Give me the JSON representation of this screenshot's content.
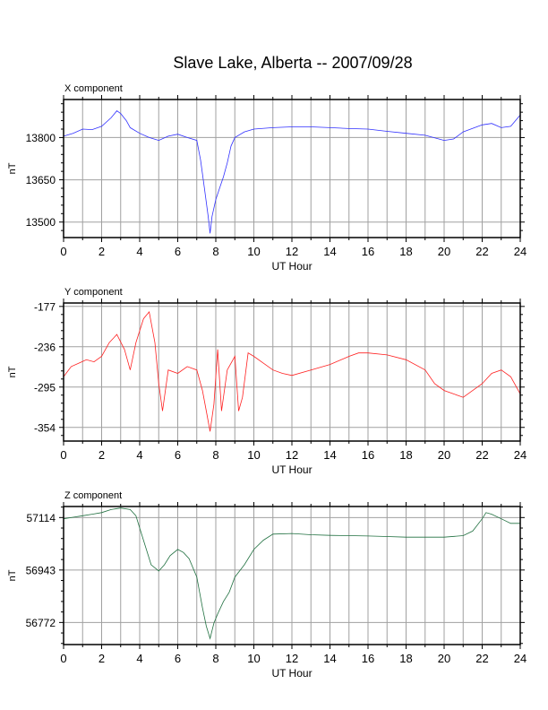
{
  "title": "Slave Lake, Alberta -- 2007/09/28",
  "colors": {
    "x": "#3030ff",
    "y": "#ff2020",
    "z": "#207040",
    "grid": "#a0a0a0",
    "axis": "#000000"
  },
  "chart_data": [
    {
      "type": "line",
      "label": "X component",
      "xlabel": "UT Hour",
      "ylabel": "nT",
      "xlim": [
        0,
        24
      ],
      "ylim": [
        13445,
        13935
      ],
      "x_ticks": [
        "0",
        "2",
        "4",
        "6",
        "8",
        "10",
        "12",
        "14",
        "16",
        "18",
        "20",
        "22",
        "24"
      ],
      "y_ticks": [
        13800,
        13650,
        13500
      ],
      "y_tick_labels": [
        "13800",
        "13650",
        "13500"
      ],
      "color": "#3030ff",
      "grid": true,
      "x": [
        0,
        0.5,
        1,
        1.5,
        2,
        2.5,
        2.8,
        3,
        3.3,
        3.5,
        4,
        4.5,
        5,
        5.5,
        6,
        6.5,
        7,
        7.2,
        7.4,
        7.6,
        7.7,
        7.8,
        8,
        8.2,
        8.4,
        8.6,
        8.8,
        9,
        9.5,
        10,
        11,
        12,
        13,
        14,
        15,
        16,
        17,
        18,
        19,
        20,
        20.5,
        21,
        22,
        22.5,
        23,
        23.5,
        24
      ],
      "values": [
        13805,
        13815,
        13830,
        13828,
        13840,
        13870,
        13895,
        13885,
        13860,
        13835,
        13815,
        13800,
        13790,
        13805,
        13812,
        13800,
        13790,
        13720,
        13620,
        13520,
        13460,
        13520,
        13580,
        13620,
        13660,
        13710,
        13770,
        13800,
        13820,
        13830,
        13835,
        13838,
        13838,
        13835,
        13832,
        13830,
        13822,
        13815,
        13808,
        13790,
        13795,
        13820,
        13845,
        13850,
        13835,
        13840,
        13880
      ]
    },
    {
      "type": "line",
      "label": "Y component",
      "xlabel": "UT Hour",
      "ylabel": "nT",
      "xlim": [
        0,
        24
      ],
      "ylim": [
        -374,
        -172
      ],
      "x_ticks": [
        "0",
        "2",
        "4",
        "6",
        "8",
        "10",
        "12",
        "14",
        "16",
        "18",
        "20",
        "22",
        "24"
      ],
      "y_ticks": [
        -177,
        -236,
        -295,
        -354
      ],
      "y_tick_labels": [
        "-177",
        "-236",
        "-295",
        "-354"
      ],
      "color": "#ff2020",
      "grid": true,
      "x": [
        0,
        0.4,
        0.8,
        1.2,
        1.6,
        2,
        2.4,
        2.8,
        3.2,
        3.5,
        3.8,
        4.2,
        4.5,
        4.8,
        5,
        5.2,
        5.5,
        6,
        6.5,
        7,
        7.3,
        7.5,
        7.7,
        7.9,
        8.1,
        8.3,
        8.6,
        9,
        9.2,
        9.4,
        9.7,
        10,
        10.5,
        11,
        11.5,
        12,
        13,
        14,
        15,
        15.5,
        16,
        17,
        18,
        19,
        19.5,
        20,
        20.5,
        21,
        21.5,
        22,
        22.5,
        23,
        23.5,
        24
      ],
      "values": [
        -280,
        -265,
        -260,
        -255,
        -258,
        -250,
        -230,
        -218,
        -240,
        -270,
        -230,
        -195,
        -185,
        -230,
        -290,
        -330,
        -270,
        -275,
        -265,
        -270,
        -300,
        -330,
        -360,
        -320,
        -240,
        -330,
        -270,
        -250,
        -330,
        -310,
        -245,
        -250,
        -260,
        -270,
        -275,
        -278,
        -270,
        -262,
        -250,
        -245,
        -245,
        -248,
        -255,
        -270,
        -290,
        -300,
        -305,
        -310,
        -300,
        -290,
        -275,
        -270,
        -280,
        -305
      ]
    },
    {
      "type": "line",
      "label": "Z component",
      "xlabel": "UT Hour",
      "ylabel": "nT",
      "xlim": [
        0,
        24
      ],
      "ylim": [
        56700,
        57150
      ],
      "x_ticks": [
        "0",
        "2",
        "4",
        "6",
        "8",
        "10",
        "12",
        "14",
        "16",
        "18",
        "20",
        "22",
        "24"
      ],
      "y_ticks": [
        57114,
        56943,
        56772
      ],
      "y_tick_labels": [
        "57114",
        "56943",
        "56772"
      ],
      "color": "#207040",
      "grid": true,
      "x": [
        0,
        0.5,
        1,
        1.5,
        2,
        2.5,
        3,
        3.5,
        3.8,
        4,
        4.3,
        4.6,
        5,
        5.3,
        5.6,
        6,
        6.3,
        6.6,
        7,
        7.3,
        7.5,
        7.7,
        7.9,
        8.1,
        8.4,
        8.7,
        9,
        9.5,
        10,
        10.5,
        11,
        12,
        13,
        14,
        15,
        16,
        17,
        18,
        19,
        20,
        21,
        21.5,
        22,
        22.2,
        22.5,
        23,
        23.5,
        24
      ],
      "values": [
        57110,
        57115,
        57120,
        57125,
        57130,
        57140,
        57145,
        57140,
        57120,
        57080,
        57020,
        56960,
        56940,
        56960,
        56990,
        57010,
        57000,
        56980,
        56920,
        56820,
        56760,
        56720,
        56770,
        56800,
        56840,
        56870,
        56920,
        56960,
        57010,
        57040,
        57060,
        57062,
        57058,
        57056,
        57055,
        57054,
        57052,
        57050,
        57050,
        57050,
        57055,
        57070,
        57110,
        57130,
        57125,
        57110,
        57095,
        57095
      ]
    }
  ]
}
